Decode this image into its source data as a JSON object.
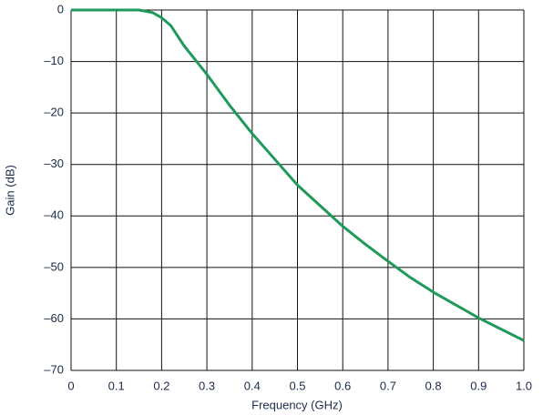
{
  "chart_data": {
    "type": "line",
    "x_label": "Frequency (GHz)",
    "y_label": "Gain (dB)",
    "x": [
      0,
      0.05,
      0.1,
      0.15,
      0.18,
      0.2,
      0.22,
      0.25,
      0.3,
      0.35,
      0.4,
      0.45,
      0.5,
      0.55,
      0.6,
      0.65,
      0.7,
      0.75,
      0.8,
      0.85,
      0.9,
      0.95,
      1.0
    ],
    "series": [
      {
        "color": "#1f9a5a",
        "values": [
          0,
          0,
          0,
          0,
          -0.5,
          -1.5,
          -3,
          -7,
          -12.5,
          -18.5,
          -24,
          -29,
          -34,
          -38,
          -42,
          -45.5,
          -48.8,
          -52,
          -54.8,
          -57.3,
          -59.8,
          -62,
          -64.2
        ]
      }
    ],
    "xlim": [
      0,
      1
    ],
    "xticks": [
      0,
      0.1,
      0.2,
      0.3,
      0.4,
      0.5,
      0.6,
      0.7,
      0.8,
      0.9,
      {
        "value": 1,
        "label": "1.0"
      }
    ],
    "ylim": [
      -70,
      0
    ],
    "yticks": [
      0,
      {
        "value": -10,
        "label": "–10"
      },
      {
        "value": -20,
        "label": "–20"
      },
      {
        "value": -30,
        "label": "–30"
      },
      {
        "value": -40,
        "label": "–40"
      },
      {
        "value": -50,
        "label": "–50"
      },
      {
        "value": -60,
        "label": "–60"
      },
      {
        "value": -70,
        "label": "–70"
      }
    ],
    "grid": true
  }
}
